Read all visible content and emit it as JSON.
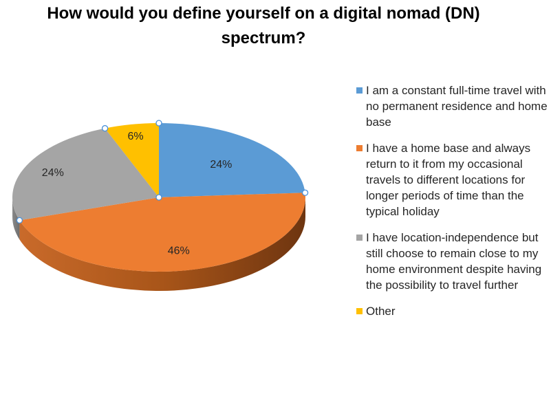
{
  "chart_data": {
    "type": "pie",
    "title": "How would you define yourself on a digital nomad (DN) spectrum?",
    "categories": [
      "I am a constant full-time travel with no permanent residence and home base",
      "I have a home base and always return to it from my occasional travels to different locations for longer periods of time than the typical holiday",
      "I have location-independence but still choose to remain close to my home environment despite having the possibility to travel further",
      "Other"
    ],
    "values": [
      24,
      46,
      24,
      6
    ],
    "value_labels": [
      "24%",
      "46%",
      "24%",
      "6%"
    ],
    "colors": [
      "#5b9bd5",
      "#ed7d31",
      "#a5a5a5",
      "#ffc000"
    ],
    "legend_position": "right",
    "style": "3d-pie"
  }
}
